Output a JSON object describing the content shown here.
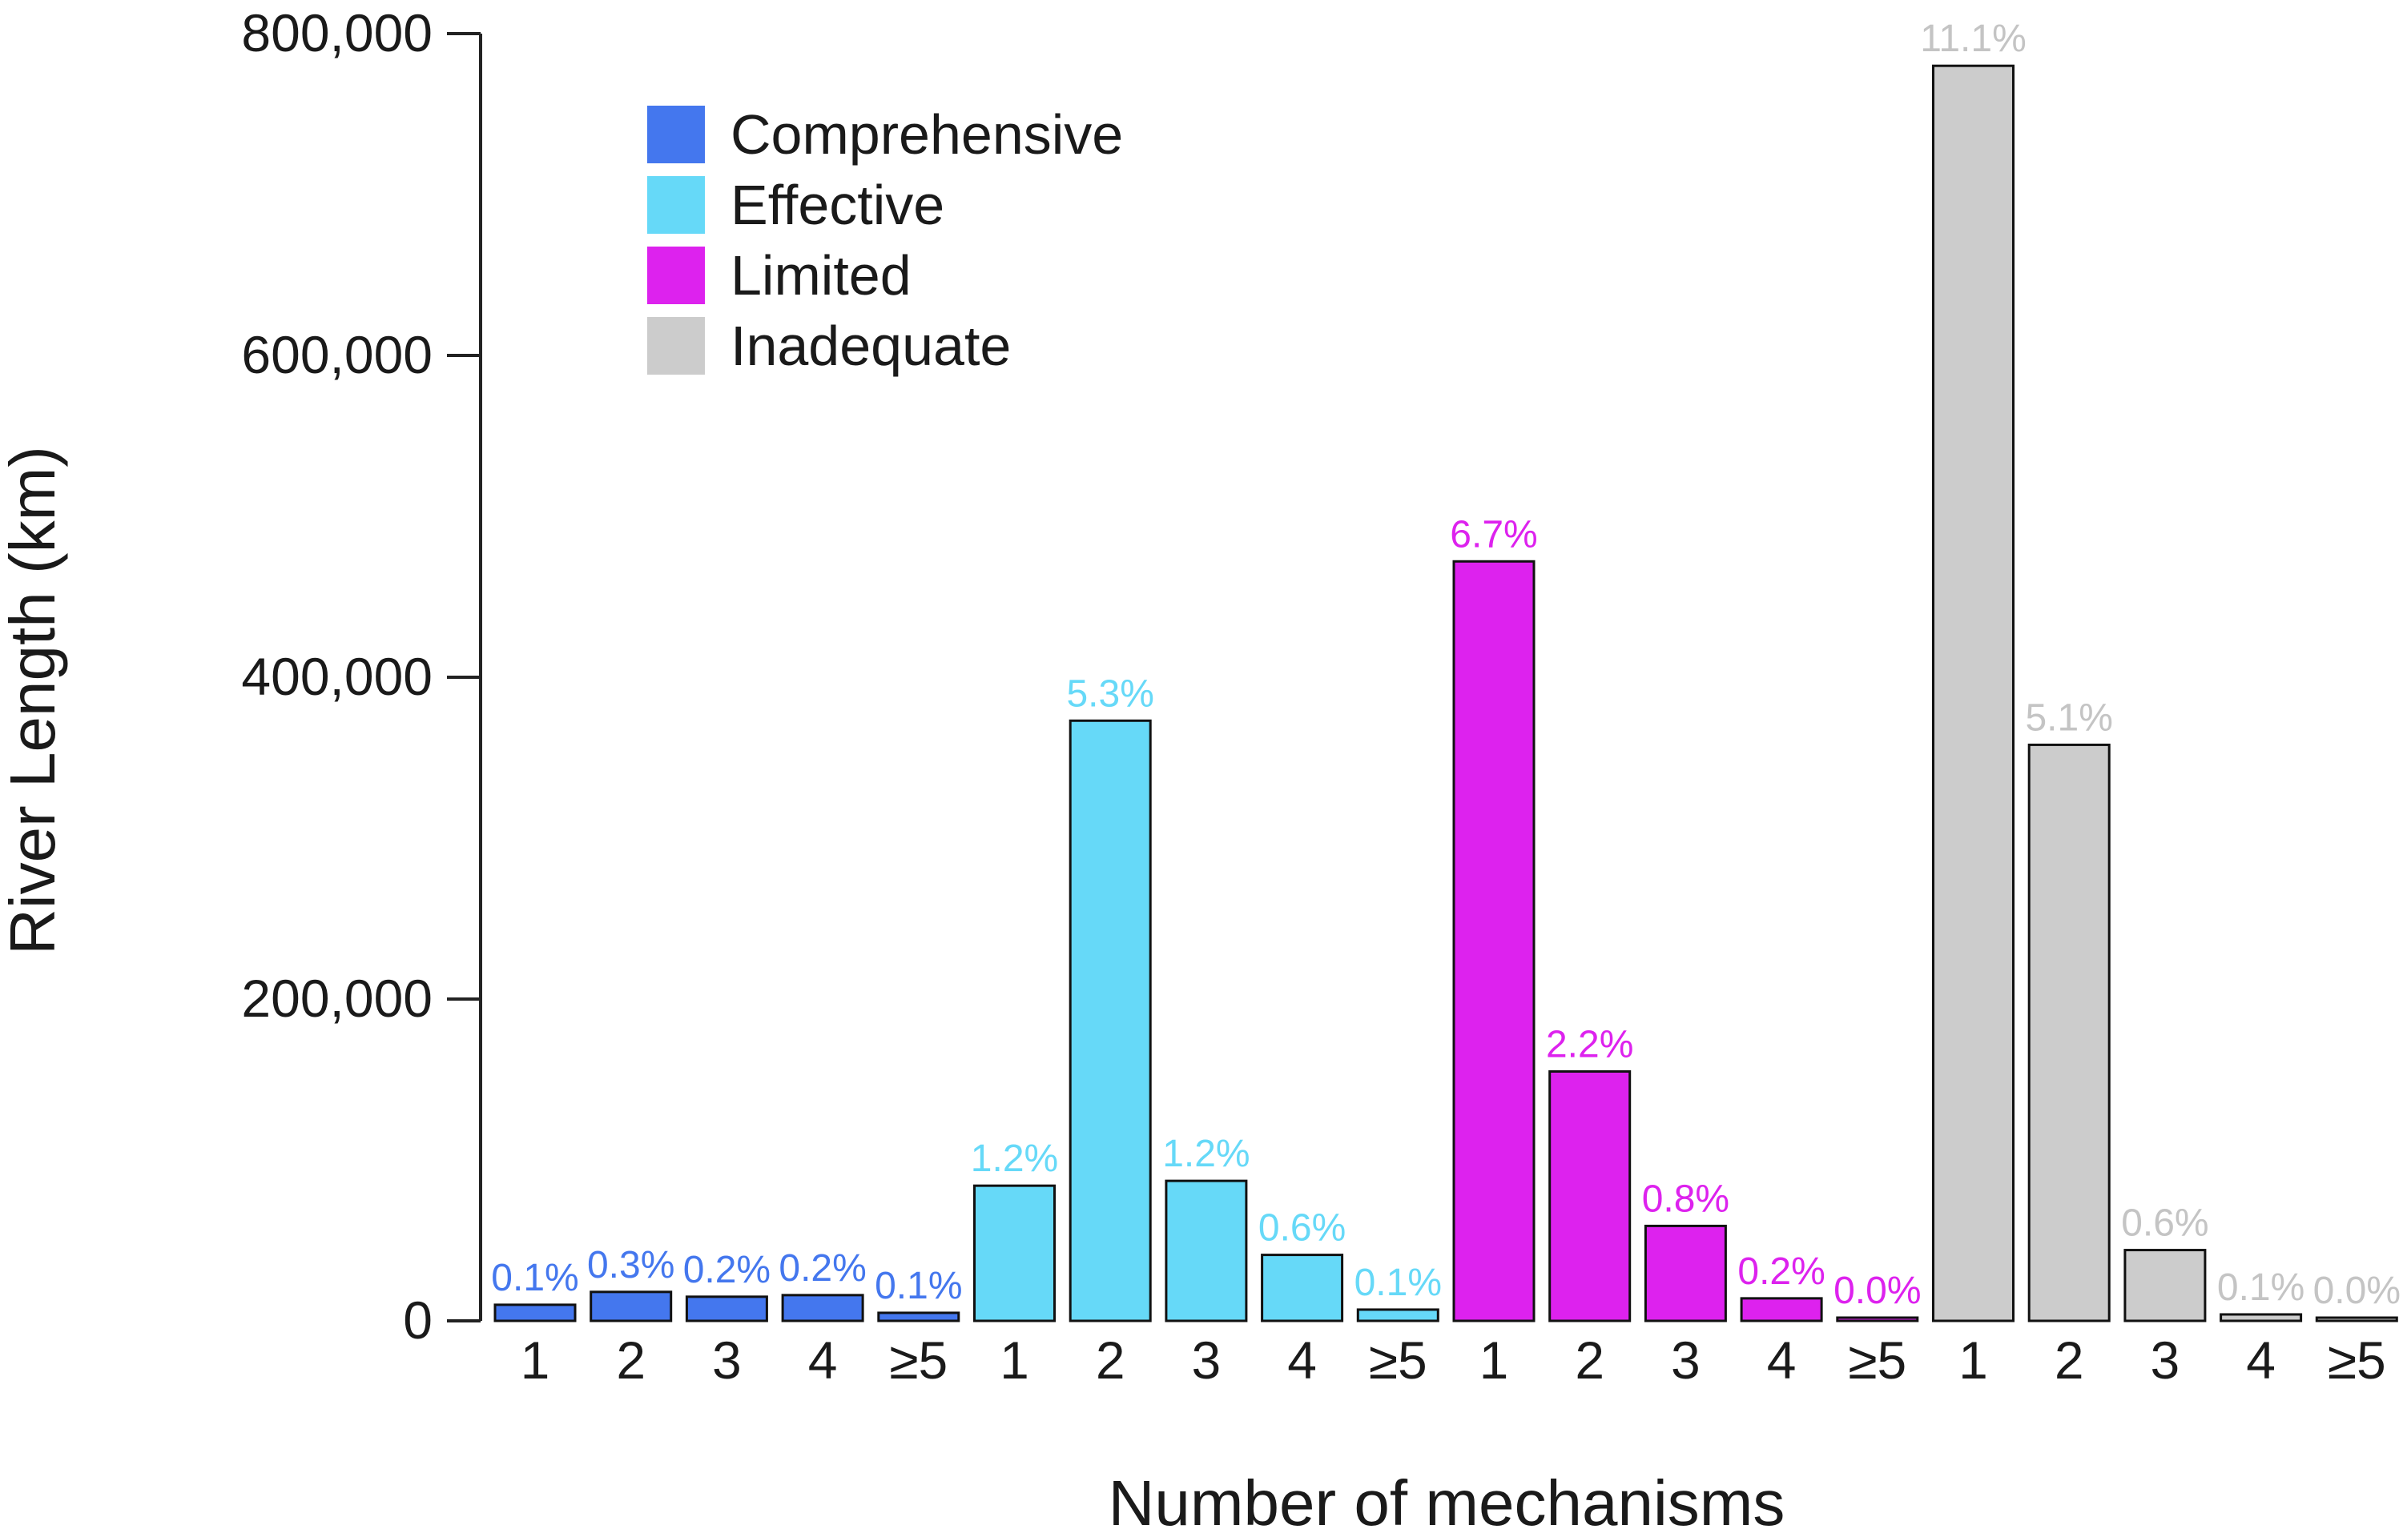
{
  "chart_data": {
    "type": "bar",
    "title": "",
    "xlabel": "Number of mechanisms",
    "ylabel": "River Length (km)",
    "ylim": [
      0,
      800000
    ],
    "yticks": [
      "0",
      "200,000",
      "400,000",
      "600,000",
      "800,000"
    ],
    "grid": false,
    "legend_position": "top-left",
    "series": [
      {
        "name": "Comprehensive",
        "color": "#4477ee",
        "categories": [
          "1",
          "2",
          "3",
          "4",
          "≥5"
        ],
        "values": [
          10000,
          18000,
          15000,
          16000,
          5000
        ],
        "labels": [
          "0.1%",
          "0.3%",
          "0.2%",
          "0.2%",
          "0.1%"
        ]
      },
      {
        "name": "Effective",
        "color": "#66d9f8",
        "categories": [
          "1",
          "2",
          "3",
          "4",
          "≥5"
        ],
        "values": [
          84000,
          373000,
          87000,
          41000,
          7000
        ],
        "labels": [
          "1.2%",
          "5.3%",
          "1.2%",
          "0.6%",
          "0.1%"
        ]
      },
      {
        "name": "Limited",
        "color": "#dd22ee",
        "categories": [
          "1",
          "2",
          "3",
          "4",
          "≥5"
        ],
        "values": [
          472000,
          155000,
          59000,
          14000,
          2000
        ],
        "labels": [
          "6.7%",
          "2.2%",
          "0.8%",
          "0.2%",
          "0.0%"
        ]
      },
      {
        "name": "Inadequate",
        "color": "#cccccc",
        "categories": [
          "1",
          "2",
          "3",
          "4",
          "≥5"
        ],
        "values": [
          780000,
          358000,
          44000,
          4000,
          500
        ],
        "labels": [
          "11.1%",
          "5.1%",
          "0.6%",
          "0.1%",
          "0.0%"
        ]
      }
    ]
  }
}
